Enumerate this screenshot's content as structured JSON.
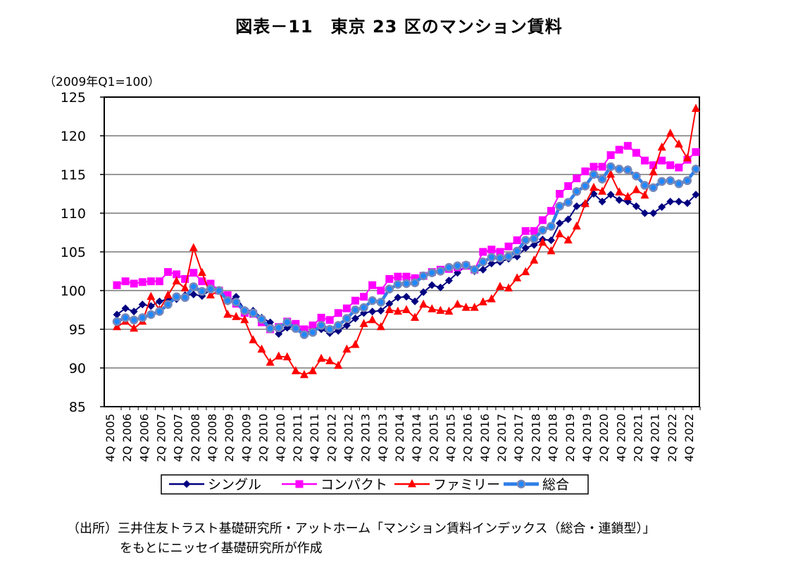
{
  "title": "図表－11　東京 23 区のマンション賃料",
  "source_line1": "（出所）三井住友トラスト基礎研究所・アットホーム「マンション賃料インデックス（総合・連鎖型）」",
  "source_line2": "をもとにニッセイ基礎研究所が作成",
  "chart_data": {
    "type": "line",
    "title": "図表－11　東京 23 区のマンション賃料",
    "ylabel": "（2009年Q1=100）",
    "xlabel": "",
    "ylim": [
      85,
      125
    ],
    "yticks": [
      85,
      90,
      95,
      100,
      105,
      110,
      115,
      120,
      125
    ],
    "grid": true,
    "legend_position": "bottom",
    "x_tick_labels": [
      "4Q 2005",
      "2Q 2006",
      "4Q 2006",
      "2Q 2007",
      "4Q 2007",
      "2Q 2008",
      "4Q 2008",
      "2Q 2009",
      "4Q 2009",
      "2Q 2010",
      "4Q 2010",
      "2Q 2011",
      "4Q 2011",
      "2Q 2012",
      "4Q 2012",
      "2Q 2013",
      "4Q 2013",
      "2Q 2014",
      "4Q 2014",
      "2Q 2015",
      "4Q 2015",
      "2Q 2016",
      "4Q 2016",
      "2Q 2017",
      "4Q 2017",
      "2Q 2018",
      "4Q 2018",
      "2Q 2019",
      "4Q 2019",
      "2Q 2020",
      "4Q 2020",
      "2Q 2021",
      "4Q 2021",
      "2Q 2022",
      "4Q 2022"
    ],
    "categories": [
      "4Q 2005",
      "1Q 2006",
      "2Q 2006",
      "3Q 2006",
      "4Q 2006",
      "1Q 2007",
      "2Q 2007",
      "3Q 2007",
      "4Q 2007",
      "1Q 2008",
      "2Q 2008",
      "3Q 2008",
      "4Q 2008",
      "1Q 2009",
      "2Q 2009",
      "3Q 2009",
      "4Q 2009",
      "1Q 2010",
      "2Q 2010",
      "3Q 2010",
      "4Q 2010",
      "1Q 2011",
      "2Q 2011",
      "3Q 2011",
      "4Q 2011",
      "1Q 2012",
      "2Q 2012",
      "3Q 2012",
      "4Q 2012",
      "1Q 2013",
      "2Q 2013",
      "3Q 2013",
      "4Q 2013",
      "1Q 2014",
      "2Q 2014",
      "3Q 2014",
      "4Q 2014",
      "1Q 2015",
      "2Q 2015",
      "3Q 2015",
      "4Q 2015",
      "1Q 2016",
      "2Q 2016",
      "3Q 2016",
      "4Q 2016",
      "1Q 2017",
      "2Q 2017",
      "3Q 2017",
      "4Q 2017",
      "1Q 2018",
      "2Q 2018",
      "3Q 2018",
      "4Q 2018",
      "1Q 2019",
      "2Q 2019",
      "3Q 2019",
      "4Q 2019",
      "1Q 2020",
      "2Q 2020",
      "3Q 2020",
      "4Q 2020",
      "1Q 2021",
      "2Q 2021",
      "3Q 2021",
      "4Q 2021",
      "1Q 2022",
      "2Q 2022",
      "3Q 2022",
      "4Q 2022"
    ],
    "series": [
      {
        "name": "シングル",
        "color": "#000080",
        "marker": "diamond",
        "values": [
          96.9,
          97.7,
          97.3,
          98.2,
          98.0,
          98.6,
          98.9,
          98.9,
          99.4,
          99.5,
          99.3,
          100.1,
          100.0,
          98.6,
          99.2,
          97.5,
          97.4,
          96.5,
          95.9,
          94.4,
          95.2,
          95.5,
          94.5,
          94.9,
          95.0,
          94.5,
          94.8,
          95.5,
          96.4,
          97.1,
          97.3,
          97.4,
          98.3,
          99.1,
          99.2,
          98.6,
          99.8,
          100.7,
          100.4,
          101.3,
          102.3,
          103.2,
          102.5,
          102.7,
          103.5,
          103.7,
          104.1,
          104.4,
          105.5,
          105.9,
          106.6,
          106.5,
          108.7,
          109.2,
          110.9,
          111.2,
          112.5,
          111.5,
          112.4,
          111.7,
          111.5,
          110.9,
          110.0,
          110.0,
          110.8,
          111.5,
          111.5,
          111.3,
          112.4
        ]
      },
      {
        "name": "コンパクト",
        "color": "#ff00ff",
        "marker": "square",
        "values": [
          100.7,
          101.2,
          100.9,
          101.1,
          101.2,
          101.2,
          102.4,
          102.1,
          101.5,
          102.3,
          101.2,
          100.9,
          100.0,
          99.4,
          98.3,
          97.1,
          97.0,
          95.9,
          95.0,
          95.3,
          96.0,
          95.7,
          95.0,
          95.5,
          96.5,
          96.2,
          97.1,
          97.7,
          98.7,
          99.2,
          100.7,
          100.0,
          101.5,
          101.8,
          101.8,
          101.6,
          101.9,
          102.4,
          102.7,
          102.8,
          103.0,
          103.2,
          102.7,
          105.0,
          105.3,
          105.0,
          105.7,
          106.5,
          107.7,
          107.7,
          109.1,
          110.3,
          112.5,
          113.5,
          114.5,
          115.4,
          116.0,
          116.0,
          117.5,
          118.2,
          118.7,
          117.8,
          116.8,
          116.2,
          116.8,
          116.2,
          115.9,
          116.9,
          117.9
        ]
      },
      {
        "name": "ファミリー",
        "color": "#ff0000",
        "marker": "triangle",
        "values": [
          95.3,
          96.0,
          95.1,
          96.0,
          99.2,
          97.5,
          99.4,
          101.2,
          100.3,
          105.5,
          102.3,
          99.4,
          100.0,
          96.9,
          96.6,
          96.2,
          93.6,
          92.4,
          90.7,
          91.5,
          91.4,
          89.6,
          89.1,
          89.6,
          91.2,
          90.9,
          90.3,
          92.4,
          93.0,
          95.7,
          96.2,
          95.3,
          97.5,
          97.3,
          97.5,
          96.5,
          98.2,
          97.6,
          97.4,
          97.3,
          98.2,
          97.8,
          97.8,
          98.5,
          98.9,
          100.5,
          100.3,
          101.6,
          102.4,
          103.9,
          106.2,
          105.1,
          107.3,
          106.5,
          108.3,
          111.2,
          113.3,
          112.8,
          115.0,
          112.7,
          112.1,
          113.0,
          112.3,
          115.3,
          118.5,
          120.3,
          118.9,
          117.1,
          123.5
        ]
      },
      {
        "name": "総合",
        "color": "#2f7fe8",
        "marker": "circle",
        "values": [
          96.0,
          96.5,
          96.2,
          96.5,
          96.9,
          97.3,
          98.2,
          99.2,
          99.1,
          100.5,
          99.9,
          100.2,
          100.0,
          98.7,
          98.5,
          97.4,
          97.1,
          96.3,
          95.1,
          95.2,
          95.9,
          95.1,
          94.3,
          94.6,
          95.5,
          95.0,
          95.5,
          96.4,
          97.5,
          97.8,
          98.7,
          98.5,
          100.2,
          100.8,
          100.9,
          101.0,
          101.9,
          102.3,
          102.5,
          103.0,
          103.2,
          103.3,
          102.7,
          103.7,
          104.3,
          104.2,
          104.4,
          105.1,
          106.5,
          106.7,
          107.8,
          108.3,
          110.9,
          111.4,
          112.8,
          113.5,
          115.0,
          114.4,
          116.0,
          115.7,
          115.6,
          114.8,
          113.6,
          113.3,
          114.1,
          114.2,
          113.8,
          114.2,
          115.7
        ]
      }
    ]
  }
}
